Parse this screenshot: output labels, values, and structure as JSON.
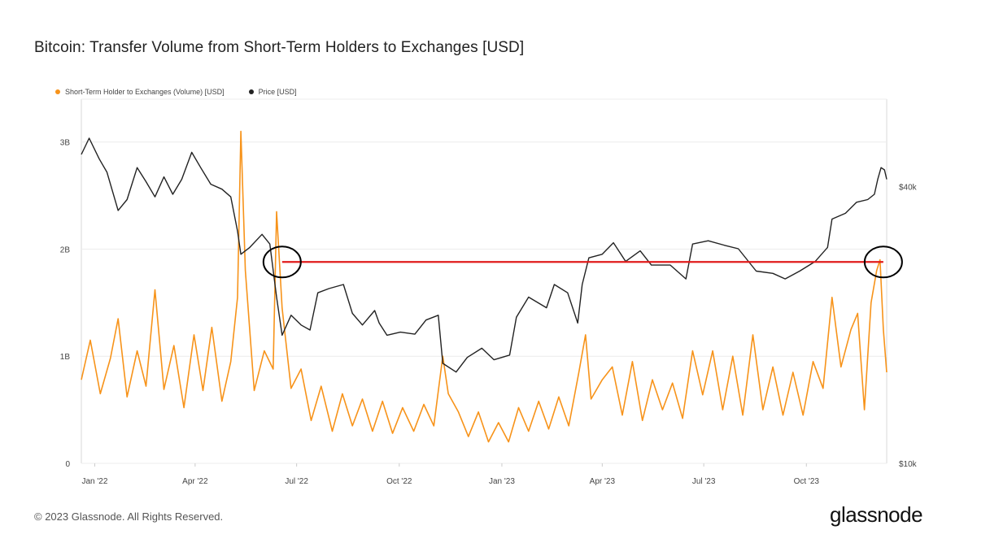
{
  "chart_data": {
    "type": "line",
    "title": "Bitcoin: Transfer Volume from Short-Term Holders to Exchanges [USD]",
    "x_tick_labels": [
      "Jan '22",
      "Apr '22",
      "Jul '22",
      "Oct '22",
      "Jan '23",
      "Apr '23",
      "Jul '23",
      "Oct '23"
    ],
    "x_range": [
      "2021-12-20",
      "2023-12-12"
    ],
    "y_left_ticks": [
      "0",
      "1B",
      "2B",
      "3B"
    ],
    "y_left_range": [
      0,
      3400000000
    ],
    "y_right_ticks": [
      "$10k",
      "$40k"
    ],
    "y_right_scale": "log",
    "y_right_range": [
      10000,
      62000
    ],
    "grid": true,
    "legend_placement": "top-left",
    "series": [
      {
        "name": "Short-Term Holder to Exchanges (Volume) [USD]",
        "axis": "left",
        "color": "#f7931a",
        "points": [
          [
            "2021-12-20",
            780000000
          ],
          [
            "2021-12-28",
            1150000000
          ],
          [
            "2022-01-06",
            650000000
          ],
          [
            "2022-01-15",
            980000000
          ],
          [
            "2022-01-22",
            1350000000
          ],
          [
            "2022-01-30",
            620000000
          ],
          [
            "2022-02-08",
            1050000000
          ],
          [
            "2022-02-16",
            720000000
          ],
          [
            "2022-02-24",
            1620000000
          ],
          [
            "2022-03-04",
            690000000
          ],
          [
            "2022-03-13",
            1100000000
          ],
          [
            "2022-03-22",
            520000000
          ],
          [
            "2022-03-31",
            1200000000
          ],
          [
            "2022-04-08",
            680000000
          ],
          [
            "2022-04-16",
            1270000000
          ],
          [
            "2022-04-25",
            580000000
          ],
          [
            "2022-05-03",
            950000000
          ],
          [
            "2022-05-09",
            1550000000
          ],
          [
            "2022-05-12",
            3100000000
          ],
          [
            "2022-05-16",
            1800000000
          ],
          [
            "2022-05-24",
            680000000
          ],
          [
            "2022-06-02",
            1050000000
          ],
          [
            "2022-06-10",
            880000000
          ],
          [
            "2022-06-13",
            2350000000
          ],
          [
            "2022-06-18",
            1450000000
          ],
          [
            "2022-06-26",
            700000000
          ],
          [
            "2022-07-05",
            880000000
          ],
          [
            "2022-07-14",
            400000000
          ],
          [
            "2022-07-23",
            720000000
          ],
          [
            "2022-08-02",
            300000000
          ],
          [
            "2022-08-11",
            650000000
          ],
          [
            "2022-08-20",
            350000000
          ],
          [
            "2022-08-29",
            600000000
          ],
          [
            "2022-09-07",
            300000000
          ],
          [
            "2022-09-16",
            580000000
          ],
          [
            "2022-09-25",
            280000000
          ],
          [
            "2022-10-04",
            520000000
          ],
          [
            "2022-10-14",
            300000000
          ],
          [
            "2022-10-23",
            550000000
          ],
          [
            "2022-11-01",
            350000000
          ],
          [
            "2022-11-09",
            1000000000
          ],
          [
            "2022-11-14",
            650000000
          ],
          [
            "2022-11-23",
            480000000
          ],
          [
            "2022-12-02",
            250000000
          ],
          [
            "2022-12-11",
            480000000
          ],
          [
            "2022-12-20",
            200000000
          ],
          [
            "2022-12-29",
            380000000
          ],
          [
            "2023-01-07",
            200000000
          ],
          [
            "2023-01-16",
            520000000
          ],
          [
            "2023-01-25",
            300000000
          ],
          [
            "2023-02-03",
            580000000
          ],
          [
            "2023-02-12",
            320000000
          ],
          [
            "2023-02-21",
            620000000
          ],
          [
            "2023-03-02",
            350000000
          ],
          [
            "2023-03-11",
            850000000
          ],
          [
            "2023-03-17",
            1200000000
          ],
          [
            "2023-03-22",
            600000000
          ],
          [
            "2023-04-01",
            780000000
          ],
          [
            "2023-04-10",
            900000000
          ],
          [
            "2023-04-19",
            450000000
          ],
          [
            "2023-04-28",
            950000000
          ],
          [
            "2023-05-07",
            400000000
          ],
          [
            "2023-05-16",
            780000000
          ],
          [
            "2023-05-25",
            500000000
          ],
          [
            "2023-06-03",
            750000000
          ],
          [
            "2023-06-12",
            420000000
          ],
          [
            "2023-06-21",
            1050000000
          ],
          [
            "2023-06-30",
            640000000
          ],
          [
            "2023-07-09",
            1050000000
          ],
          [
            "2023-07-18",
            500000000
          ],
          [
            "2023-07-27",
            1000000000
          ],
          [
            "2023-08-05",
            450000000
          ],
          [
            "2023-08-14",
            1200000000
          ],
          [
            "2023-08-23",
            500000000
          ],
          [
            "2023-09-01",
            900000000
          ],
          [
            "2023-09-10",
            450000000
          ],
          [
            "2023-09-19",
            850000000
          ],
          [
            "2023-09-28",
            450000000
          ],
          [
            "2023-10-07",
            950000000
          ],
          [
            "2023-10-16",
            700000000
          ],
          [
            "2023-10-24",
            1550000000
          ],
          [
            "2023-11-01",
            900000000
          ],
          [
            "2023-11-10",
            1250000000
          ],
          [
            "2023-11-16",
            1400000000
          ],
          [
            "2023-11-22",
            500000000
          ],
          [
            "2023-11-28",
            1500000000
          ],
          [
            "2023-12-03",
            1800000000
          ],
          [
            "2023-12-06",
            1900000000
          ],
          [
            "2023-12-09",
            1250000000
          ],
          [
            "2023-12-12",
            850000000
          ]
        ]
      },
      {
        "name": "Price [USD]",
        "axis": "right",
        "color": "#222222",
        "points": [
          [
            "2021-12-20",
            47000
          ],
          [
            "2021-12-27",
            51000
          ],
          [
            "2022-01-05",
            46000
          ],
          [
            "2022-01-12",
            43000
          ],
          [
            "2022-01-22",
            35500
          ],
          [
            "2022-01-30",
            37500
          ],
          [
            "2022-02-08",
            44000
          ],
          [
            "2022-02-16",
            41000
          ],
          [
            "2022-02-24",
            38000
          ],
          [
            "2022-03-04",
            42000
          ],
          [
            "2022-03-12",
            38500
          ],
          [
            "2022-03-20",
            41500
          ],
          [
            "2022-03-29",
            47500
          ],
          [
            "2022-04-06",
            44000
          ],
          [
            "2022-04-15",
            40500
          ],
          [
            "2022-04-25",
            39500
          ],
          [
            "2022-05-03",
            38000
          ],
          [
            "2022-05-09",
            32000
          ],
          [
            "2022-05-12",
            28500
          ],
          [
            "2022-05-20",
            29500
          ],
          [
            "2022-05-31",
            31500
          ],
          [
            "2022-06-07",
            30000
          ],
          [
            "2022-06-13",
            23000
          ],
          [
            "2022-06-18",
            19000
          ],
          [
            "2022-06-26",
            21000
          ],
          [
            "2022-07-05",
            20000
          ],
          [
            "2022-07-13",
            19500
          ],
          [
            "2022-07-20",
            23500
          ],
          [
            "2022-07-30",
            24000
          ],
          [
            "2022-08-12",
            24500
          ],
          [
            "2022-08-20",
            21200
          ],
          [
            "2022-08-29",
            20000
          ],
          [
            "2022-09-09",
            21500
          ],
          [
            "2022-09-13",
            20200
          ],
          [
            "2022-09-20",
            19000
          ],
          [
            "2022-10-02",
            19300
          ],
          [
            "2022-10-15",
            19100
          ],
          [
            "2022-10-25",
            20500
          ],
          [
            "2022-11-05",
            21000
          ],
          [
            "2022-11-09",
            16500
          ],
          [
            "2022-11-21",
            15800
          ],
          [
            "2022-12-01",
            17000
          ],
          [
            "2022-12-14",
            17800
          ],
          [
            "2022-12-25",
            16800
          ],
          [
            "2023-01-08",
            17200
          ],
          [
            "2023-01-14",
            20800
          ],
          [
            "2023-01-25",
            23000
          ],
          [
            "2023-02-10",
            21800
          ],
          [
            "2023-02-17",
            24500
          ],
          [
            "2023-03-01",
            23500
          ],
          [
            "2023-03-10",
            20200
          ],
          [
            "2023-03-14",
            24500
          ],
          [
            "2023-03-20",
            28000
          ],
          [
            "2023-04-01",
            28500
          ],
          [
            "2023-04-11",
            30200
          ],
          [
            "2023-04-22",
            27500
          ],
          [
            "2023-05-05",
            29000
          ],
          [
            "2023-05-15",
            27000
          ],
          [
            "2023-06-01",
            27000
          ],
          [
            "2023-06-15",
            25200
          ],
          [
            "2023-06-21",
            30000
          ],
          [
            "2023-07-05",
            30500
          ],
          [
            "2023-07-20",
            29800
          ],
          [
            "2023-08-01",
            29300
          ],
          [
            "2023-08-17",
            26200
          ],
          [
            "2023-09-01",
            25900
          ],
          [
            "2023-09-12",
            25200
          ],
          [
            "2023-09-25",
            26200
          ],
          [
            "2023-10-09",
            27500
          ],
          [
            "2023-10-20",
            29500
          ],
          [
            "2023-10-24",
            34000
          ],
          [
            "2023-11-05",
            35000
          ],
          [
            "2023-11-15",
            37000
          ],
          [
            "2023-11-25",
            37500
          ],
          [
            "2023-12-01",
            38500
          ],
          [
            "2023-12-04",
            41500
          ],
          [
            "2023-12-07",
            44000
          ],
          [
            "2023-12-10",
            43500
          ],
          [
            "2023-12-12",
            41500
          ]
        ]
      }
    ],
    "annotations": {
      "horizontal_line": {
        "color": "#e01b1b",
        "from": "2022-06-18",
        "to": "2023-12-09",
        "left_axis_value": 1880000000
      },
      "circles": [
        {
          "date": "2022-06-18",
          "left_axis_value": 1880000000
        },
        {
          "date": "2023-12-09",
          "left_axis_value": 1880000000
        }
      ]
    }
  },
  "footer": {
    "copyright": "© 2023 Glassnode. All Rights Reserved."
  },
  "brand": {
    "logo_text": "glassnode"
  }
}
